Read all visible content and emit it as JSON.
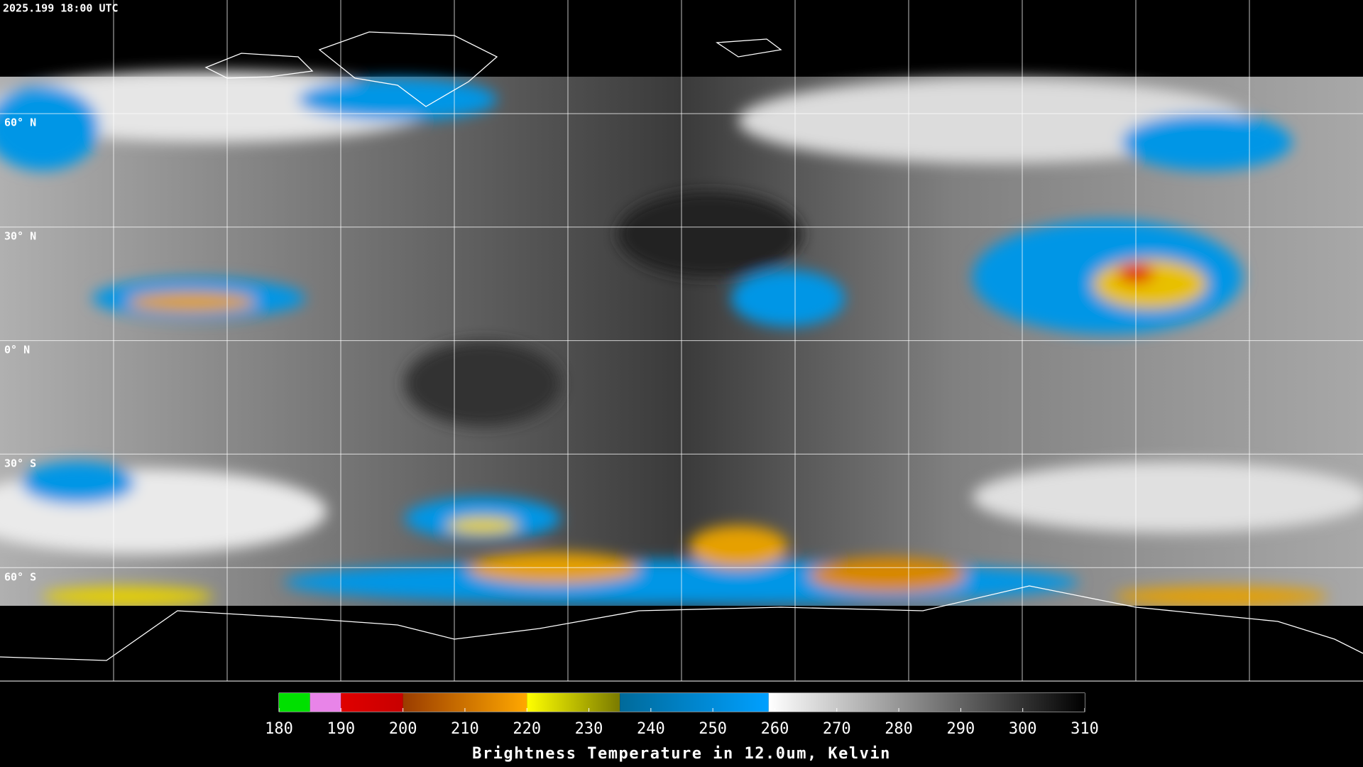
{
  "header": {
    "timestamp": "2025.199 18:00 UTC"
  },
  "map": {
    "latitude_labels": [
      "60° N",
      "30° N",
      "0° N",
      "30° S",
      "60° S"
    ]
  },
  "colorbar": {
    "title": "Brightness Temperature in 12.0um, Kelvin",
    "lim": [
      180,
      310
    ],
    "ticks": [
      180,
      190,
      200,
      210,
      220,
      230,
      240,
      250,
      260,
      270,
      280,
      290,
      300,
      310
    ],
    "segments": [
      {
        "from": 180,
        "to": 185,
        "colors": [
          "#00e000",
          "#00e000"
        ]
      },
      {
        "from": 185,
        "to": 190,
        "colors": [
          "#e884e8",
          "#e884e8"
        ]
      },
      {
        "from": 190,
        "to": 200,
        "colors": [
          "#e00000",
          "#c80000"
        ]
      },
      {
        "from": 200,
        "to": 220,
        "colors": [
          "#9a3c00",
          "#ffa800"
        ]
      },
      {
        "from": 220,
        "to": 235,
        "colors": [
          "#ffff00",
          "#7a7a00"
        ]
      },
      {
        "from": 235,
        "to": 259,
        "colors": [
          "#006a9a",
          "#00a0ff"
        ]
      },
      {
        "from": 259,
        "to": 310,
        "colors": [
          "#ffffff",
          "#000000"
        ]
      }
    ]
  }
}
